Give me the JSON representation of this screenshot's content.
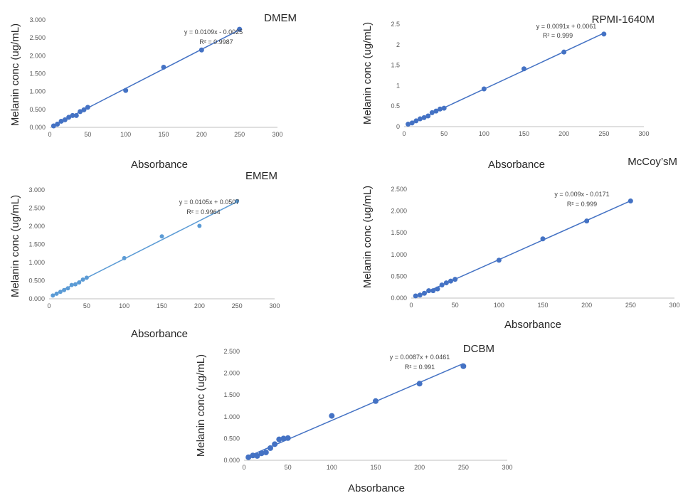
{
  "chart_data": [
    {
      "id": "dmem",
      "type": "scatter",
      "title": "DMEM",
      "xlabel": "Absorbance",
      "ylabel": "Melanin conc (ug/mL)",
      "xlim": [
        0,
        300
      ],
      "ylim": [
        0,
        3
      ],
      "x_ticks": [
        "0",
        "50",
        "100",
        "150",
        "200",
        "250",
        "300"
      ],
      "y_ticks": [
        "0.000",
        "0.500",
        "1.000",
        "1.500",
        "2.000",
        "2.500",
        "3.000"
      ],
      "trendline": {
        "slope": 0.0109,
        "intercept": -0.0025,
        "equation": "y = 0.0109x - 0.0025",
        "r2": "R² = 0.9987"
      },
      "color": "#4472c4",
      "series": [
        {
          "x": [
            5,
            10,
            15,
            20,
            25,
            30,
            35,
            40,
            45,
            50,
            100,
            150,
            200,
            250
          ],
          "y": [
            0.04,
            0.09,
            0.17,
            0.21,
            0.28,
            0.33,
            0.33,
            0.44,
            0.49,
            0.56,
            1.03,
            1.68,
            2.16,
            2.74
          ]
        }
      ]
    },
    {
      "id": "rpmi",
      "type": "scatter",
      "title": "RPMI-1640M",
      "xlabel": "Absorbance",
      "ylabel": "Melanin conc (ug/mL)",
      "xlim": [
        0,
        300
      ],
      "ylim": [
        0,
        2.5
      ],
      "x_ticks": [
        "0",
        "50",
        "100",
        "150",
        "200",
        "250",
        "300"
      ],
      "y_ticks": [
        "0",
        "0.5",
        "1",
        "1.5",
        "2",
        "2.5"
      ],
      "trendline": {
        "slope": 0.0091,
        "intercept": 0.0061,
        "equation": "y = 0.0091x + 0.0061",
        "r2": "R² = 0.999"
      },
      "color": "#4472c4",
      "series": [
        {
          "x": [
            5,
            10,
            15,
            20,
            25,
            30,
            35,
            40,
            45,
            50,
            100,
            150,
            200,
            250
          ],
          "y": [
            0.06,
            0.09,
            0.14,
            0.19,
            0.22,
            0.26,
            0.34,
            0.38,
            0.43,
            0.45,
            0.92,
            1.41,
            1.82,
            2.26
          ]
        }
      ]
    },
    {
      "id": "emem",
      "type": "scatter",
      "title": "EMEM",
      "xlabel": "Absorbance",
      "ylabel": "Melanin conc (ug/mL)",
      "xlim": [
        0,
        300
      ],
      "ylim": [
        0,
        3
      ],
      "x_ticks": [
        "0",
        "50",
        "100",
        "150",
        "200",
        "250",
        "300"
      ],
      "y_ticks": [
        "0.000",
        "0.500",
        "1.000",
        "1.500",
        "2.000",
        "2.500",
        "3.000"
      ],
      "trendline": {
        "slope": 0.0105,
        "intercept": 0.0507,
        "equation": "y = 0.0105x + 0.0507",
        "r2": "R² = 0.9964"
      },
      "color": "#5b9bd5",
      "series": [
        {
          "x": [
            5,
            10,
            15,
            20,
            25,
            30,
            35,
            40,
            45,
            50,
            100,
            150,
            200,
            250
          ],
          "y": [
            0.09,
            0.14,
            0.19,
            0.24,
            0.29,
            0.38,
            0.4,
            0.45,
            0.53,
            0.58,
            1.12,
            1.72,
            2.01,
            2.69
          ]
        }
      ]
    },
    {
      "id": "mccoy",
      "type": "scatter",
      "title": "McCoy’sM",
      "xlabel": "Absorbance",
      "ylabel": "Melanin conc (ug/mL)",
      "xlim": [
        0,
        300
      ],
      "ylim": [
        0,
        2.5
      ],
      "x_ticks": [
        "0",
        "50",
        "100",
        "150",
        "200",
        "250",
        "300"
      ],
      "y_ticks": [
        "0.000",
        "0.500",
        "1.000",
        "1.500",
        "2.000",
        "2.500"
      ],
      "trendline": {
        "slope": 0.009,
        "intercept": -0.0171,
        "equation": "y = 0.009x - 0.0171",
        "r2": "R² = 0.999"
      },
      "color": "#4472c4",
      "series": [
        {
          "x": [
            5,
            10,
            15,
            20,
            25,
            30,
            35,
            40,
            45,
            50,
            100,
            150,
            200,
            250
          ],
          "y": [
            0.05,
            0.07,
            0.11,
            0.17,
            0.17,
            0.21,
            0.3,
            0.35,
            0.39,
            0.43,
            0.87,
            1.36,
            1.77,
            2.23
          ]
        }
      ]
    },
    {
      "id": "dcbm",
      "type": "scatter",
      "title": "DCBM",
      "xlabel": "Absorbance",
      "ylabel": "Melanin conc (ug/mL)",
      "xlim": [
        0,
        300
      ],
      "ylim": [
        0,
        2.5
      ],
      "x_ticks": [
        "0",
        "50",
        "100",
        "150",
        "200",
        "250",
        "300"
      ],
      "y_ticks": [
        "0.000",
        "0.500",
        "1.000",
        "1.500",
        "2.000",
        "2.500"
      ],
      "trendline": {
        "slope": 0.0087,
        "intercept": 0.0461,
        "equation": "y = 0.0087x + 0.0461",
        "r2": "R² = 0.991"
      },
      "color": "#4472c4",
      "series": [
        {
          "x": [
            5,
            10,
            15,
            20,
            25,
            30,
            35,
            40,
            45,
            50,
            100,
            150,
            200,
            250
          ],
          "y": [
            0.07,
            0.11,
            0.1,
            0.16,
            0.18,
            0.28,
            0.37,
            0.48,
            0.5,
            0.51,
            1.02,
            1.36,
            1.76,
            2.16
          ]
        }
      ]
    }
  ]
}
